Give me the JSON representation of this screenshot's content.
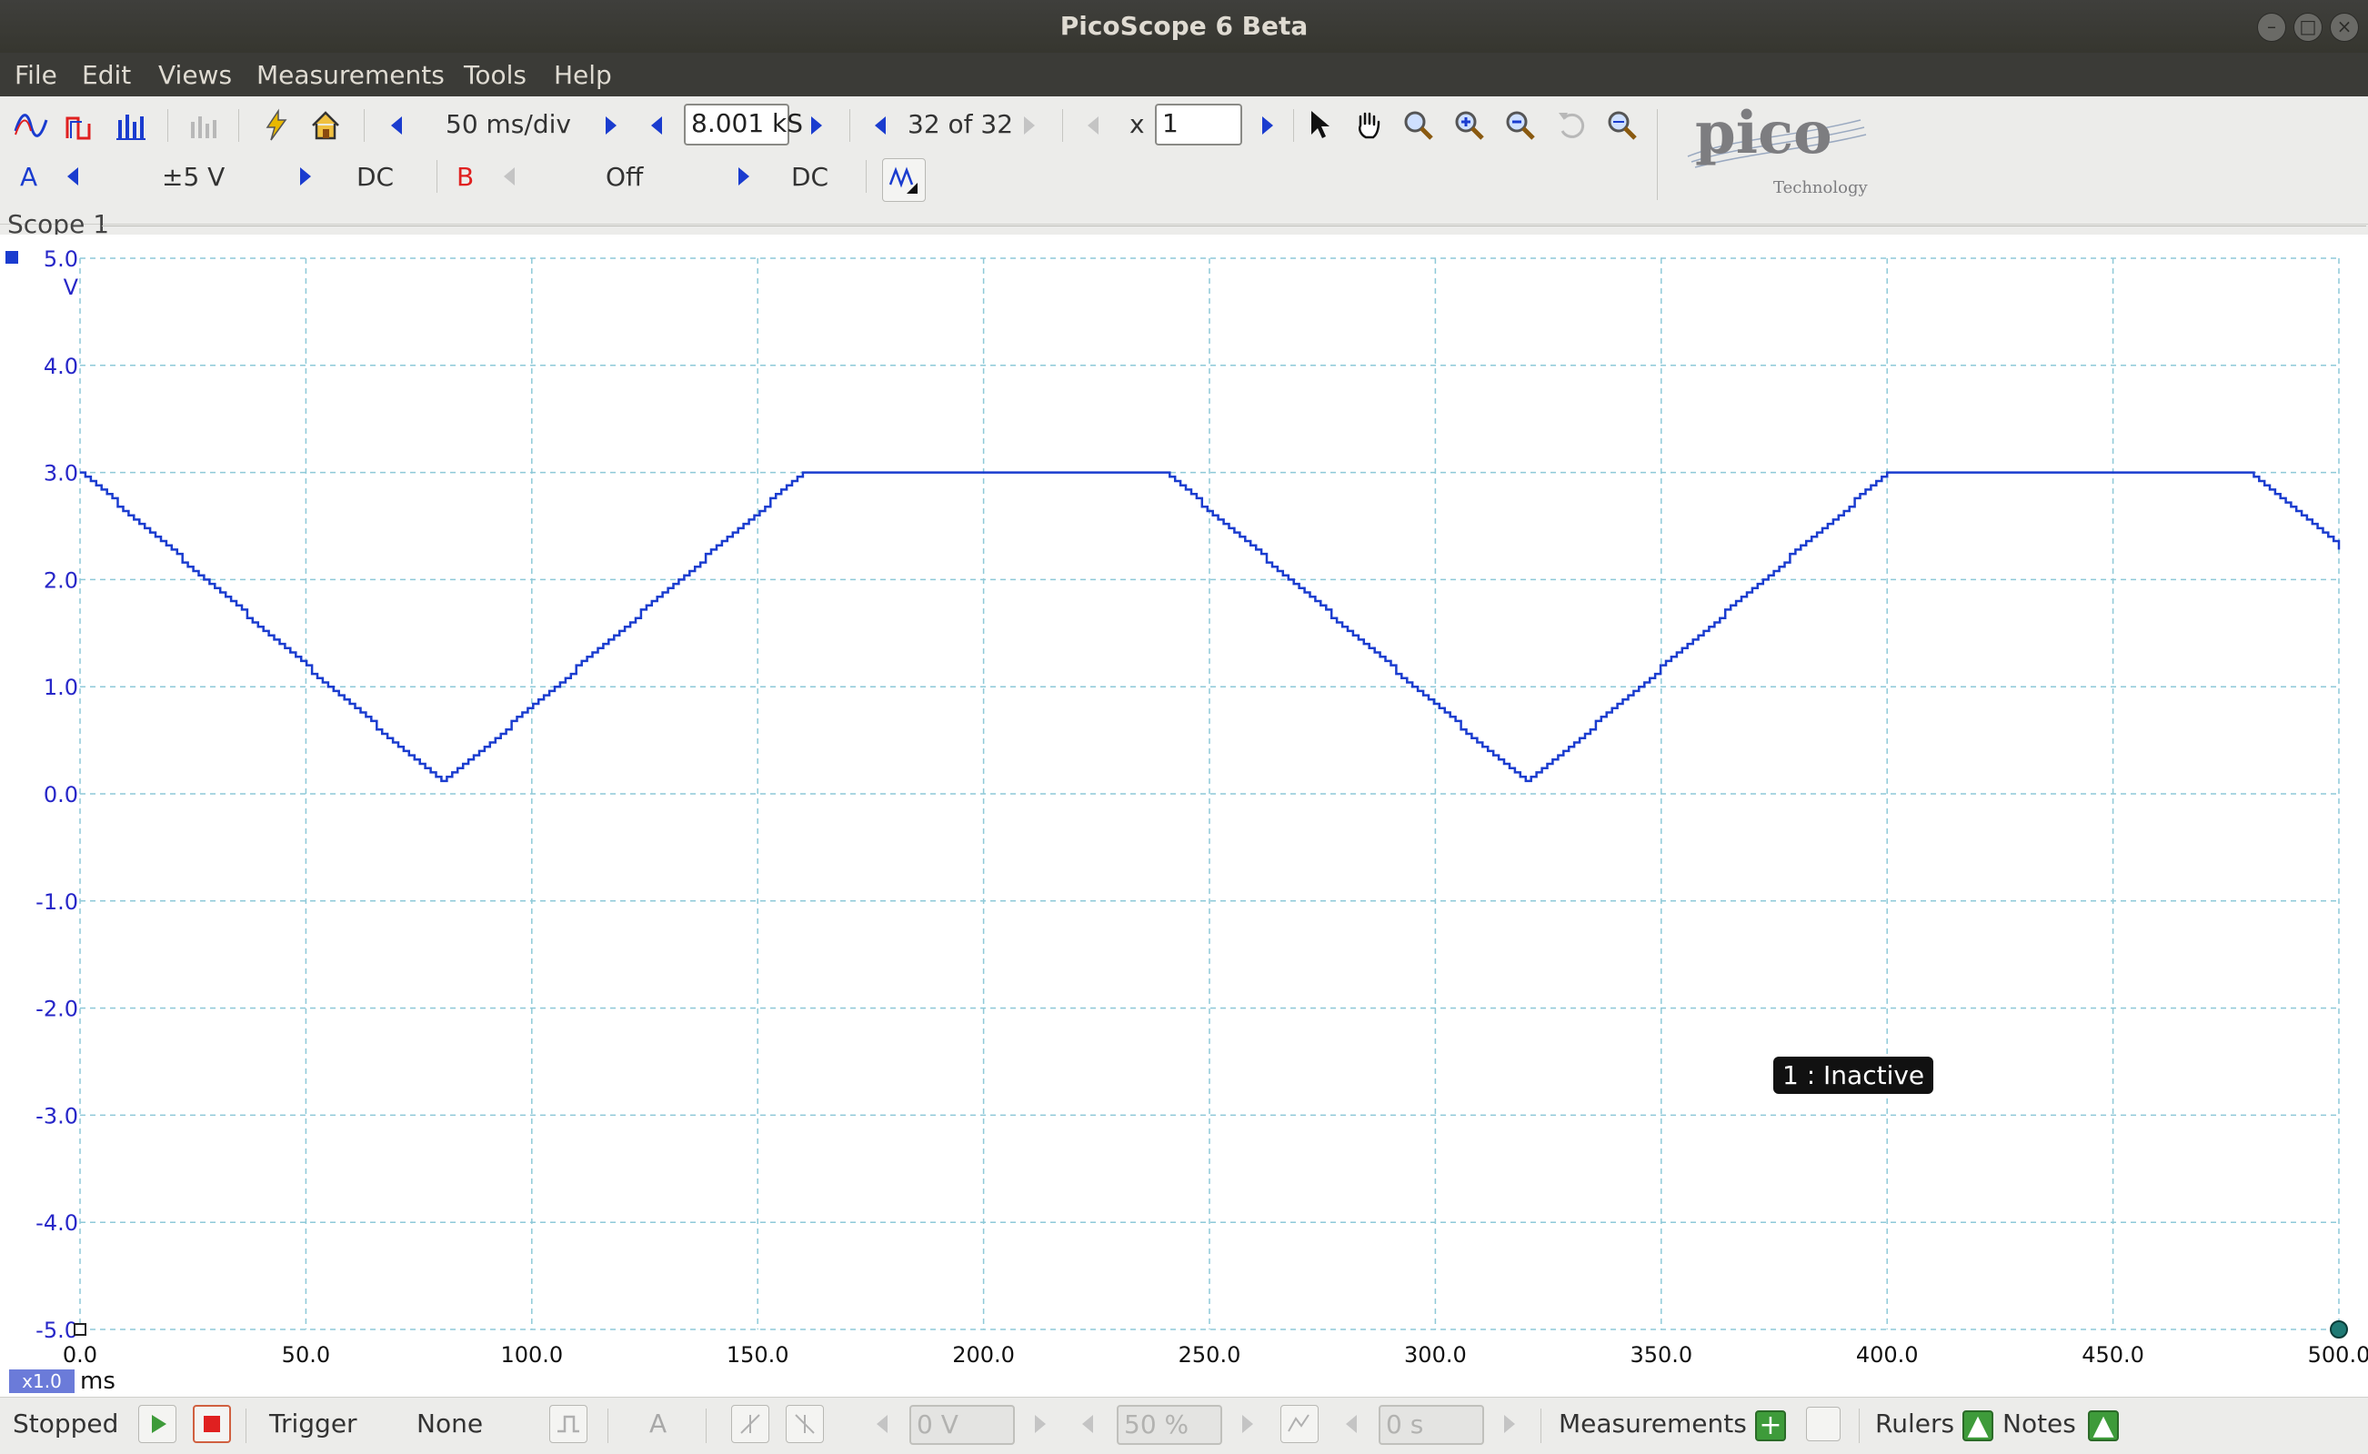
{
  "window": {
    "title": "PicoScope 6 Beta"
  },
  "menu": [
    "File",
    "Edit",
    "Views",
    "Measurements",
    "Tools",
    "Help"
  ],
  "toolbar": {
    "timebase": "50 ms/div",
    "samples": "8.001 kS",
    "buffer": "32 of 32",
    "zoom_x_label": "x",
    "zoom_value": "1"
  },
  "channels": {
    "a": {
      "name": "A",
      "range": "±5 V",
      "coupling": "DC",
      "color": "#1a3ccf"
    },
    "b": {
      "name": "B",
      "range": "Off",
      "coupling": "DC",
      "color": "#e02020"
    }
  },
  "logo": {
    "text": "pico",
    "sub": "Technology"
  },
  "view": {
    "tab": "Scope 1",
    "tooltip": "1 : Inactive",
    "scale_badge": "x1.0",
    "x_unit": "ms"
  },
  "chart_data": {
    "type": "line",
    "xlabel": "ms",
    "ylabel": "V",
    "xlim": [
      0,
      500
    ],
    "ylim": [
      -5,
      5
    ],
    "grid": true,
    "y_ticks": [
      "5.0",
      "4.0",
      "3.0",
      "2.0",
      "1.0",
      "0.0",
      "-1.0",
      "-2.0",
      "-3.0",
      "-4.0",
      "-5.0"
    ],
    "x_ticks": [
      "0.0",
      "50.0",
      "100.0",
      "150.0",
      "200.0",
      "250.0",
      "300.0",
      "350.0",
      "400.0",
      "450.0",
      "500.0"
    ],
    "series": [
      {
        "color": "#1a3ccf",
        "x": [
          0,
          80,
          160,
          240,
          320,
          400,
          480,
          500
        ],
        "y": [
          3.0,
          0.1,
          3.0,
          3.0,
          0.1,
          3.0,
          3.0,
          2.3
        ]
      }
    ]
  },
  "statusbar": {
    "state": "Stopped",
    "trigger_label": "Trigger",
    "trigger_mode": "None",
    "trigger_source": "A",
    "threshold": "0 V",
    "pretrigger": "50 %",
    "delay": "0 s",
    "measurements": "Measurements",
    "rulers": "Rulers",
    "notes": "Notes"
  }
}
